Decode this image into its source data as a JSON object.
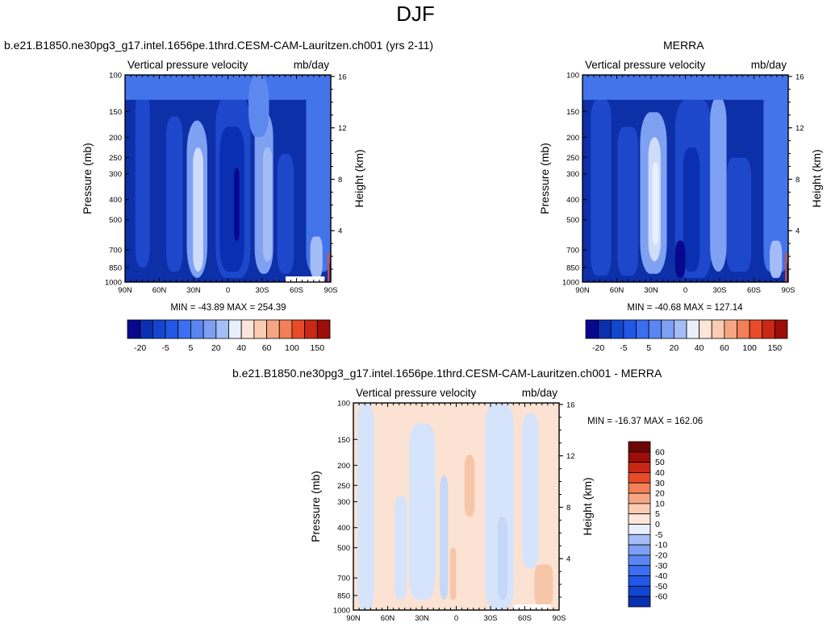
{
  "title": "DJF",
  "colors": {
    "ramp": [
      "#08088f",
      "#0a2fb0",
      "#1246cf",
      "#2358e6",
      "#3b6ef0",
      "#5a86f2",
      "#7da0f3",
      "#a5bdf6",
      "#cbd8f8",
      "#eaf0fb",
      "#fde6d9",
      "#fbcbb2",
      "#f7a683",
      "#f27f57",
      "#e84b2a",
      "#c82814",
      "#9c0e07",
      "#6e0405"
    ],
    "blue_levels": [
      "#0d2fa8",
      "#1d48cc",
      "#2d5ee0",
      "#4374ea",
      "#5d89ef",
      "#7ea1f2",
      "#a4bcf5",
      "#cfdcfa",
      "#e9f0fd"
    ],
    "diff_levels": [
      "#d6e4fb",
      "#c5d8f8",
      "#fbe2d2",
      "#f7c6a9"
    ]
  },
  "chart_data": [
    {
      "type": "heatmap",
      "title": "b.e21.B1850.ne30pg3_g17.intel.1656pe.1thrd.CESM-CAM-Lauritzen.ch001 (yrs 2-11)",
      "left_label": "Vertical pressure velocity",
      "right_label": "mb/day",
      "xlabel": "",
      "ylabel": "Pressure (mb)",
      "ylabel_right": "Height (km)",
      "x_ticks": [
        "90N",
        "60N",
        "30N",
        "0",
        "30S",
        "60S",
        "90S"
      ],
      "y_ticks": [
        "100",
        "150",
        "200",
        "250",
        "300",
        "400",
        "500",
        "700",
        "850",
        "1000"
      ],
      "y_ticks_right": [
        "16",
        "12",
        "8",
        "4"
      ],
      "stats": "MIN = -43.89   MAX = 254.39",
      "min": -43.89,
      "max": 254.39,
      "colorbar_labels": [
        "-20",
        "-5",
        "5",
        "20",
        "40",
        "60",
        "100",
        "150"
      ]
    },
    {
      "type": "heatmap",
      "title": "MERRA",
      "left_label": "Vertical pressure velocity",
      "right_label": "mb/day",
      "xlabel": "",
      "ylabel": "Pressure (mb)",
      "ylabel_right": "Height (km)",
      "x_ticks": [
        "90N",
        "60N",
        "30N",
        "0",
        "30S",
        "60S",
        "90S"
      ],
      "y_ticks": [
        "100",
        "150",
        "200",
        "250",
        "300",
        "400",
        "500",
        "700",
        "850",
        "1000"
      ],
      "y_ticks_right": [
        "16",
        "12",
        "8",
        "4"
      ],
      "stats": "MIN = -40.68   MAX = 127.14",
      "min": -40.68,
      "max": 127.14,
      "colorbar_labels": [
        "-20",
        "-5",
        "5",
        "20",
        "40",
        "60",
        "100",
        "150"
      ]
    },
    {
      "type": "heatmap",
      "title": "b.e21.B1850.ne30pg3_g17.intel.1656pe.1thrd.CESM-CAM-Lauritzen.ch001 - MERRA",
      "left_label": "Vertical pressure velocity",
      "right_label": "mb/day",
      "xlabel": "",
      "ylabel": "Pressure (mb)",
      "ylabel_right": "Height (km)",
      "x_ticks": [
        "90N",
        "60N",
        "30N",
        "0",
        "30S",
        "60S",
        "90S"
      ],
      "y_ticks": [
        "100",
        "150",
        "200",
        "250",
        "300",
        "400",
        "500",
        "700",
        "850",
        "1000"
      ],
      "y_ticks_right": [
        "16",
        "12",
        "8",
        "4"
      ],
      "stats": "MIN = -16.37   MAX = 162.06",
      "min": -16.37,
      "max": 162.06,
      "colorbar_labels": [
        "60",
        "50",
        "40",
        "30",
        "20",
        "10",
        "5",
        "0",
        "-5",
        "-10",
        "-20",
        "-30",
        "-40",
        "-50",
        "-60"
      ]
    }
  ]
}
